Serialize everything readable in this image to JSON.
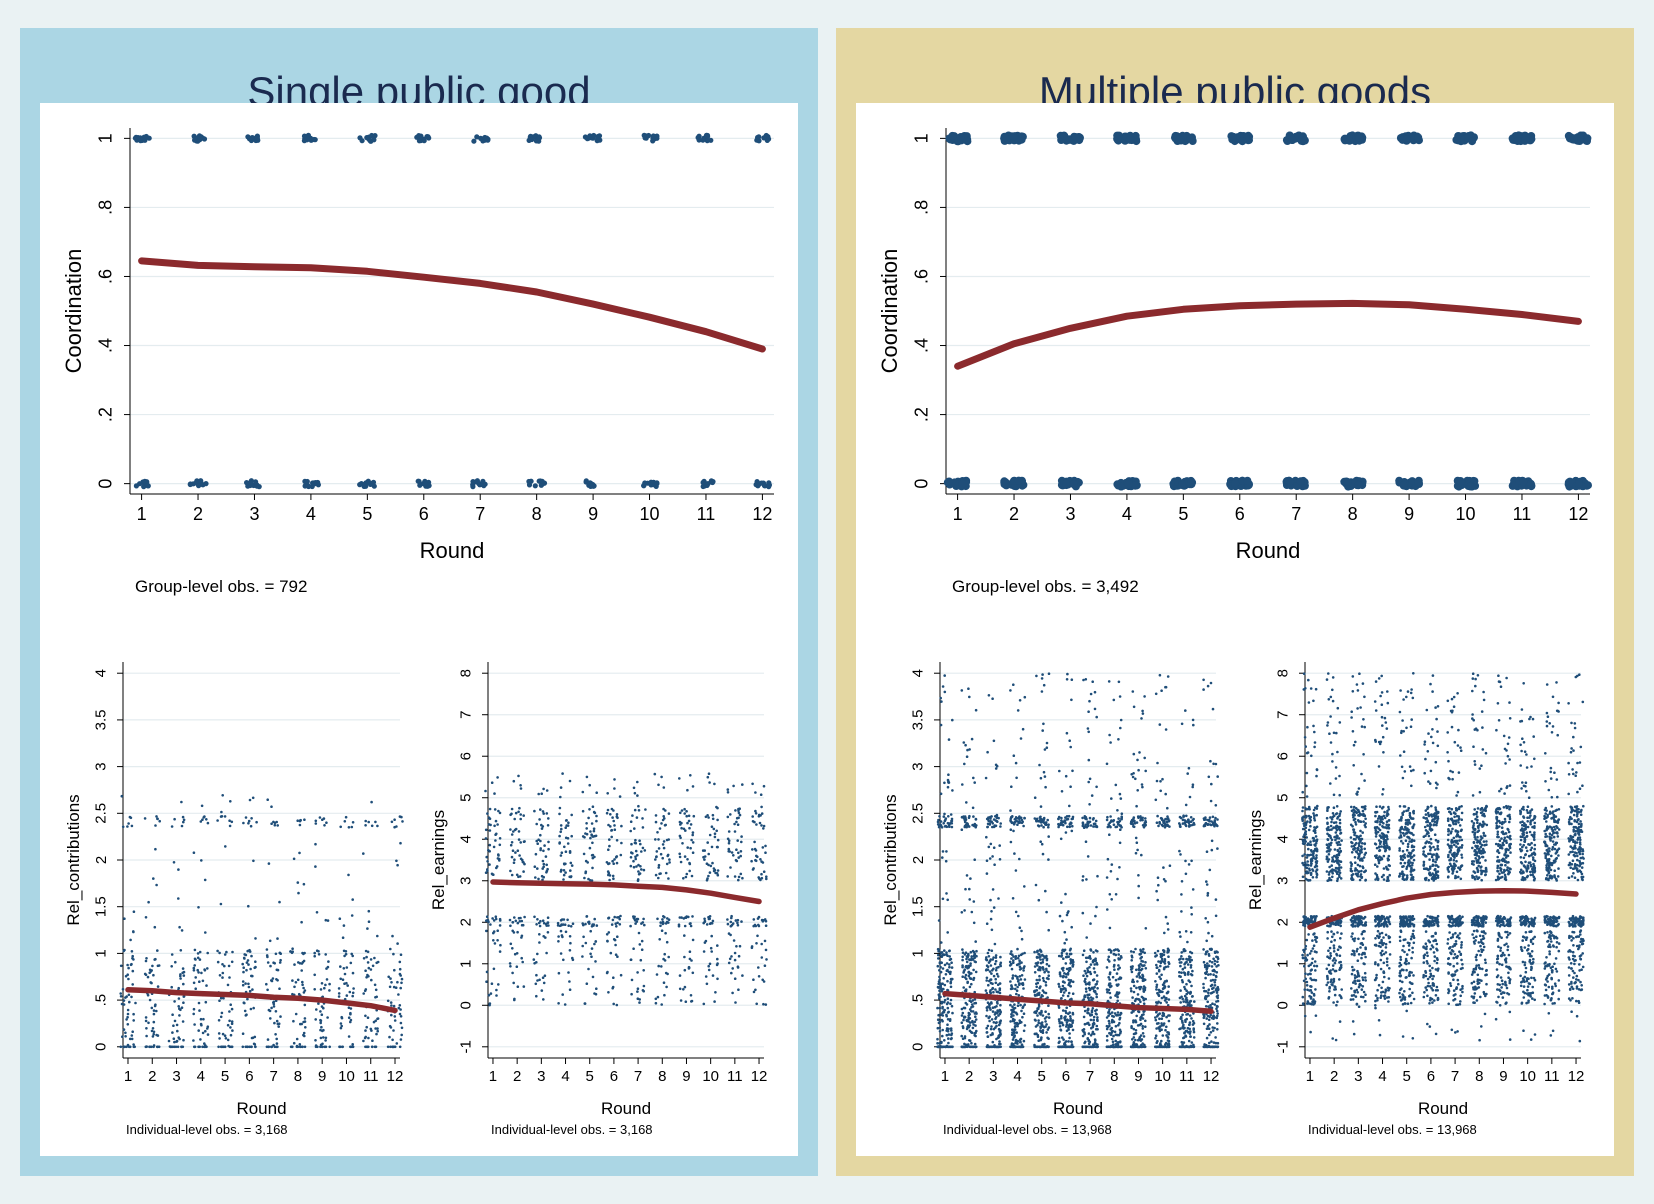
{
  "colors": {
    "left_panel": "#abd6e4",
    "right_panel": "#e4d7a2",
    "points": "#1f4e79",
    "fit_line": "#8b2a2d"
  },
  "panels": [
    {
      "title": "Single public good",
      "top_chart": {
        "type": "scatter",
        "xlabel": "Round",
        "ylabel": "Coordination",
        "note": "Group-level obs. = 792",
        "x_ticks": [
          "1",
          "2",
          "3",
          "4",
          "5",
          "6",
          "7",
          "8",
          "9",
          "10",
          "11",
          "12"
        ],
        "y_ticks": [
          {
            "v": 0,
            "t": "0"
          },
          {
            "v": 0.2,
            "t": ".2"
          },
          {
            "v": 0.4,
            "t": ".4"
          },
          {
            "v": 0.6,
            "t": ".6"
          },
          {
            "v": 0.8,
            "t": ".8"
          },
          {
            "v": 1,
            "t": "1"
          }
        ],
        "ylim": [
          0,
          1
        ]
      },
      "bottom_left": {
        "type": "scatter",
        "xlabel": "Round",
        "ylabel": "Rel_contributions",
        "note": "Individual-level obs. = 3,168",
        "x_ticks": [
          "1",
          "2",
          "3",
          "4",
          "5",
          "6",
          "7",
          "8",
          "9",
          "10",
          "11",
          "12"
        ],
        "y_ticks": [
          {
            "v": 0,
            "t": "0"
          },
          {
            "v": 0.5,
            "t": ".5"
          },
          {
            "v": 1,
            "t": "1"
          },
          {
            "v": 1.5,
            "t": "1.5"
          },
          {
            "v": 2,
            "t": "2"
          },
          {
            "v": 2.5,
            "t": "2.5"
          },
          {
            "v": 3,
            "t": "3"
          },
          {
            "v": 3.5,
            "t": "3.5"
          },
          {
            "v": 4,
            "t": "4"
          }
        ],
        "ylim": [
          0,
          4
        ]
      },
      "bottom_right": {
        "type": "scatter",
        "xlabel": "Round",
        "ylabel": "Rel_earnings",
        "note": "Individual-level obs. = 3,168",
        "x_ticks": [
          "1",
          "2",
          "3",
          "4",
          "5",
          "6",
          "7",
          "8",
          "9",
          "10",
          "11",
          "12"
        ],
        "y_ticks": [
          {
            "v": -1,
            "t": "-1"
          },
          {
            "v": 0,
            "t": "0"
          },
          {
            "v": 1,
            "t": "1"
          },
          {
            "v": 2,
            "t": "2"
          },
          {
            "v": 3,
            "t": "3"
          },
          {
            "v": 4,
            "t": "4"
          },
          {
            "v": 5,
            "t": "5"
          },
          {
            "v": 6,
            "t": "6"
          },
          {
            "v": 7,
            "t": "7"
          },
          {
            "v": 8,
            "t": "8"
          }
        ],
        "ylim": [
          -1,
          8
        ]
      }
    },
    {
      "title": "Multiple public goods",
      "top_chart": {
        "type": "scatter",
        "xlabel": "Round",
        "ylabel": "Coordination",
        "note": "Group-level obs. = 3,492",
        "x_ticks": [
          "1",
          "2",
          "3",
          "4",
          "5",
          "6",
          "7",
          "8",
          "9",
          "10",
          "11",
          "12"
        ],
        "y_ticks": [
          {
            "v": 0,
            "t": "0"
          },
          {
            "v": 0.2,
            "t": ".2"
          },
          {
            "v": 0.4,
            "t": ".4"
          },
          {
            "v": 0.6,
            "t": ".6"
          },
          {
            "v": 0.8,
            "t": ".8"
          },
          {
            "v": 1,
            "t": "1"
          }
        ],
        "ylim": [
          0,
          1
        ]
      },
      "bottom_left": {
        "type": "scatter",
        "xlabel": "Round",
        "ylabel": "Rel_contributions",
        "note": "Individual-level obs. = 13,968",
        "x_ticks": [
          "1",
          "2",
          "3",
          "4",
          "5",
          "6",
          "7",
          "8",
          "9",
          "10",
          "11",
          "12"
        ],
        "y_ticks": [
          {
            "v": 0,
            "t": "0"
          },
          {
            "v": 0.5,
            "t": ".5"
          },
          {
            "v": 1,
            "t": "1"
          },
          {
            "v": 1.5,
            "t": "1.5"
          },
          {
            "v": 2,
            "t": "2"
          },
          {
            "v": 2.5,
            "t": "2.5"
          },
          {
            "v": 3,
            "t": "3"
          },
          {
            "v": 3.5,
            "t": "3.5"
          },
          {
            "v": 4,
            "t": "4"
          }
        ],
        "ylim": [
          0,
          4
        ]
      },
      "bottom_right": {
        "type": "scatter",
        "xlabel": "Round",
        "ylabel": "Rel_earnings",
        "note": "Individual-level obs. = 13,968",
        "x_ticks": [
          "1",
          "2",
          "3",
          "4",
          "5",
          "6",
          "7",
          "8",
          "9",
          "10",
          "11",
          "12"
        ],
        "y_ticks": [
          {
            "v": -1,
            "t": "-1"
          },
          {
            "v": 0,
            "t": "0"
          },
          {
            "v": 1,
            "t": "1"
          },
          {
            "v": 2,
            "t": "2"
          },
          {
            "v": 3,
            "t": "3"
          },
          {
            "v": 4,
            "t": "4"
          },
          {
            "v": 5,
            "t": "5"
          },
          {
            "v": 6,
            "t": "6"
          },
          {
            "v": 7,
            "t": "7"
          },
          {
            "v": 8,
            "t": "8"
          }
        ],
        "ylim": [
          -1,
          8
        ]
      }
    }
  ],
  "chart_data": [
    {
      "type": "scatter",
      "panel": "Single public good",
      "ylabel": "Coordination",
      "xlabel": "Round",
      "ylim": [
        0,
        1
      ],
      "x": [
        1,
        2,
        3,
        4,
        5,
        6,
        7,
        8,
        9,
        10,
        11,
        12
      ],
      "fit": [
        0.645,
        0.632,
        0.628,
        0.625,
        0.615,
        0.598,
        0.58,
        0.555,
        0.52,
        0.482,
        0.44,
        0.39
      ]
    },
    {
      "type": "scatter",
      "panel": "Multiple public goods",
      "ylabel": "Coordination",
      "xlabel": "Round",
      "ylim": [
        0,
        1
      ],
      "x": [
        1,
        2,
        3,
        4,
        5,
        6,
        7,
        8,
        9,
        10,
        11,
        12
      ],
      "fit": [
        0.34,
        0.405,
        0.45,
        0.485,
        0.505,
        0.515,
        0.52,
        0.522,
        0.518,
        0.505,
        0.49,
        0.47
      ]
    },
    {
      "type": "scatter",
      "panel": "Single public good",
      "ylabel": "Rel_contributions",
      "xlabel": "Round",
      "ylim": [
        0,
        4
      ],
      "x": [
        1,
        2,
        3,
        4,
        5,
        6,
        7,
        8,
        9,
        10,
        11,
        12
      ],
      "fit": [
        0.61,
        0.6,
        0.58,
        0.57,
        0.56,
        0.55,
        0.53,
        0.52,
        0.5,
        0.47,
        0.44,
        0.39
      ]
    },
    {
      "type": "scatter",
      "panel": "Single public good",
      "ylabel": "Rel_earnings",
      "xlabel": "Round",
      "ylim": [
        -1,
        8
      ],
      "x": [
        1,
        2,
        3,
        4,
        5,
        6,
        7,
        8,
        9,
        10,
        11,
        12
      ],
      "fit": [
        2.97,
        2.95,
        2.94,
        2.93,
        2.92,
        2.9,
        2.87,
        2.84,
        2.78,
        2.7,
        2.6,
        2.5
      ]
    },
    {
      "type": "scatter",
      "panel": "Multiple public goods",
      "ylabel": "Rel_contributions",
      "xlabel": "Round",
      "ylim": [
        0,
        4
      ],
      "x": [
        1,
        2,
        3,
        4,
        5,
        6,
        7,
        8,
        9,
        10,
        11,
        12
      ],
      "fit": [
        0.57,
        0.55,
        0.53,
        0.51,
        0.49,
        0.47,
        0.46,
        0.44,
        0.42,
        0.41,
        0.4,
        0.38
      ]
    },
    {
      "type": "scatter",
      "panel": "Multiple public goods",
      "ylabel": "Rel_earnings",
      "xlabel": "Round",
      "ylim": [
        -1,
        8
      ],
      "x": [
        1,
        2,
        3,
        4,
        5,
        6,
        7,
        8,
        9,
        10,
        11,
        12
      ],
      "fit": [
        1.88,
        2.1,
        2.3,
        2.45,
        2.58,
        2.67,
        2.72,
        2.75,
        2.76,
        2.75,
        2.72,
        2.68
      ]
    }
  ]
}
